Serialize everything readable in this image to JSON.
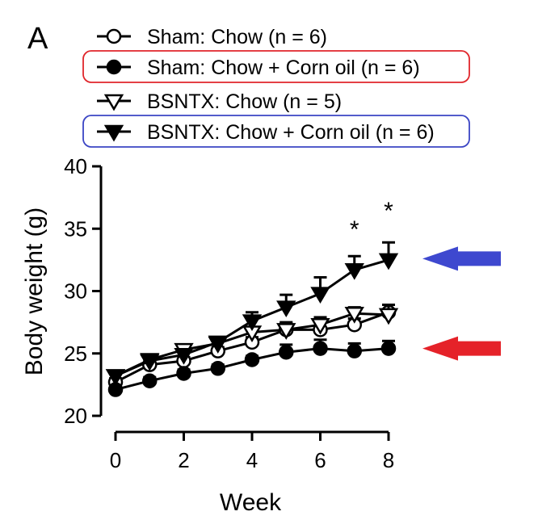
{
  "chart_data": {
    "type": "line",
    "panel_label": "A",
    "xlabel": "Week",
    "ylabel": "Body weight (g)",
    "xlim": [
      0,
      8
    ],
    "ylim": [
      20,
      40
    ],
    "x_ticks": [
      "0",
      "2",
      "4",
      "6",
      "8"
    ],
    "y_ticks": [
      "20",
      "25",
      "30",
      "35",
      "40"
    ],
    "x": [
      0,
      1,
      2,
      3,
      4,
      5,
      6,
      7,
      8
    ],
    "grid": false,
    "legend_position": "top",
    "series": [
      {
        "name": "Sham: Chow (n = 6)",
        "marker": "circle-open",
        "values": [
          22.7,
          24.1,
          24.4,
          25.2,
          25.9,
          26.9,
          26.9,
          27.3,
          28.3
        ],
        "errors": [
          0.3,
          0.3,
          0.3,
          0.3,
          0.4,
          0.6,
          0.6,
          0.5,
          0.6
        ]
      },
      {
        "name": "Sham: Chow + Corn oil  (n = 6)",
        "marker": "circle-filled",
        "values": [
          22.1,
          22.8,
          23.4,
          23.8,
          24.5,
          25.1,
          25.4,
          25.2,
          25.4
        ],
        "errors": [
          0.3,
          0.3,
          0.3,
          0.3,
          0.3,
          0.6,
          0.7,
          0.6,
          0.6
        ]
      },
      {
        "name": "BSNTX: Chow (n = 5)",
        "marker": "triangle-down-open",
        "values": [
          23.2,
          24.5,
          25.3,
          25.8,
          26.7,
          26.9,
          27.3,
          28.2,
          28.1
        ],
        "errors": [
          0.4,
          0.3,
          0.3,
          0.3,
          0.4,
          0.5,
          0.6,
          0.5,
          0.8
        ]
      },
      {
        "name": "BSNTX: Chow + Corn oil (n = 6)",
        "marker": "triangle-down-filled",
        "values": [
          23.2,
          24.4,
          24.9,
          25.9,
          27.6,
          28.7,
          29.8,
          31.7,
          32.5
        ],
        "errors": [
          0.4,
          0.3,
          0.4,
          0.4,
          0.7,
          1.0,
          1.3,
          1.1,
          1.4
        ]
      }
    ],
    "annotations": [
      {
        "text": "*",
        "x": 7,
        "y": 34.3
      },
      {
        "text": "*",
        "x": 8,
        "y": 35.8
      }
    ],
    "legend_highlights": [
      {
        "series_index": 1,
        "color": "#e0262b"
      },
      {
        "series_index": 3,
        "color": "#3b45c4"
      }
    ],
    "arrows": [
      {
        "color": "#3e48cf",
        "points_to_y": 32.6,
        "refers_to_series": 3
      },
      {
        "color": "#e52229",
        "points_to_y": 25.4,
        "refers_to_series": 1
      }
    ]
  }
}
